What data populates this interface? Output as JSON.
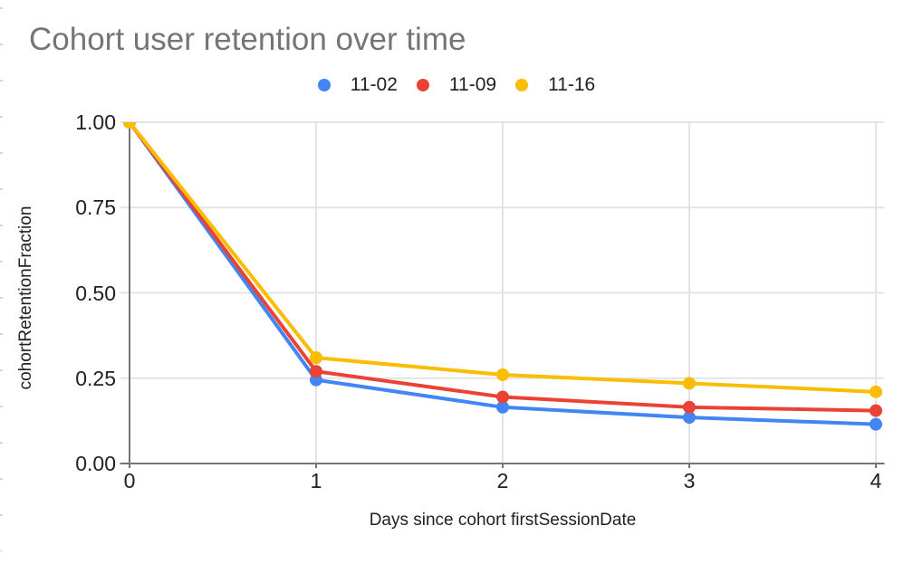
{
  "colors": {
    "grid": "#e4e4e4",
    "axis": "#757575",
    "title_text": "#757575",
    "label_text": "#202124"
  },
  "chart_data": {
    "type": "line",
    "title": "Cohort user retention over time",
    "xlabel": "Days since cohort firstSessionDate",
    "ylabel": "cohortRetentionFraction",
    "x": [
      0,
      1,
      2,
      3,
      4
    ],
    "x_tick_labels": [
      "0",
      "1",
      "2",
      "3",
      "4"
    ],
    "y_ticks": [
      1.0,
      0.75,
      0.5,
      0.25,
      0.0
    ],
    "y_tick_labels": [
      "1.00",
      "0.75",
      "0.50",
      "0.25",
      "0.00"
    ],
    "xlim": [
      0,
      4
    ],
    "ylim": [
      0,
      1
    ],
    "grid": true,
    "legend_position": "top",
    "series": [
      {
        "name": "11-02",
        "color": "#4285F4",
        "values": [
          1.0,
          0.245,
          0.165,
          0.135,
          0.115
        ]
      },
      {
        "name": "11-09",
        "color": "#EA4335",
        "values": [
          1.0,
          0.27,
          0.195,
          0.165,
          0.155
        ]
      },
      {
        "name": "11-16",
        "color": "#FBBC04",
        "values": [
          1.0,
          0.31,
          0.26,
          0.235,
          0.21
        ]
      }
    ]
  }
}
